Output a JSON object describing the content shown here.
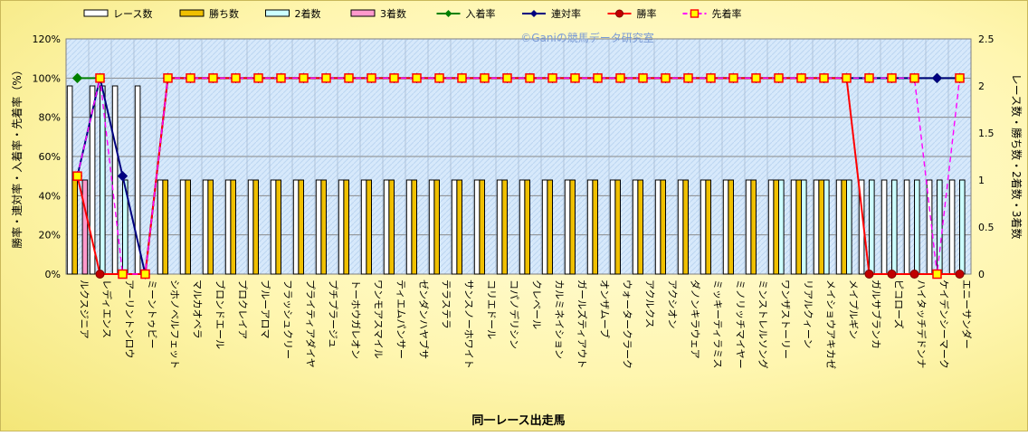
{
  "chart_data": {
    "type": "bar",
    "watermark": "©Ganiの競馬データ研究室",
    "xlabel": "同一レース出走馬",
    "ylabel_left": "勝率・連対率・入着率・先着率（%）",
    "ylabel_right": "レース数・勝ち数・2着数・3着数",
    "y_left_ticks": [
      "0%",
      "20%",
      "40%",
      "60%",
      "80%",
      "100%",
      "120%"
    ],
    "y_right_ticks": [
      "0",
      "0.5",
      "1",
      "1.5",
      "2",
      "2.5"
    ],
    "ylim_left": [
      0,
      120
    ],
    "ylim_right": [
      0,
      2.5
    ],
    "grid": true,
    "legend_position": "top",
    "categories": [
      "ルクスジニア",
      "レディエンス",
      "アーリントンロウ",
      "ミーントゥビー",
      "シホノベルフェット",
      "マルカオベラ",
      "ブロンドエール",
      "プロクレイア",
      "ブルーアロマ",
      "フラッシュクリー",
      "プライティアダイヤ",
      "プチプラージュ",
      "トーホウガレオン",
      "ワンモアスマイル",
      "ティエムパンサー",
      "ゼンダンハヤブサ",
      "テラステラ",
      "サンスノーホワイト",
      "コリエドール",
      "コパノデリシン",
      "クレベール",
      "カルミネイション",
      "ガールズティアウト",
      "オンザムーブ",
      "ウォータークラーク",
      "アクルクス",
      "アクシオン",
      "ダノンキラウェア",
      "ミッキーティラミス",
      "ミノリッチマイヤー",
      "ミンストレルソング",
      "ワンザストーリー",
      "リアルクィーン",
      "メイショウアキカゼ",
      "メイプルギン",
      "ガルサブランカ",
      "ピコローズ",
      "ハイタッチデドンナ",
      "ケイデンシーマーク",
      "エニーサンダー"
    ],
    "series": [
      {
        "name": "レース数",
        "axis": "right",
        "color": "#ffffff",
        "values": [
          2,
          2,
          2,
          2,
          1,
          1,
          1,
          1,
          1,
          1,
          1,
          1,
          1,
          1,
          1,
          1,
          1,
          1,
          1,
          1,
          1,
          1,
          1,
          1,
          1,
          1,
          1,
          1,
          1,
          1,
          1,
          1,
          1,
          1,
          1,
          1,
          1,
          1,
          1,
          1
        ]
      },
      {
        "name": "勝ち数",
        "axis": "right",
        "color": "#f0c000",
        "values": [
          1,
          0,
          0,
          0,
          1,
          1,
          1,
          1,
          1,
          1,
          1,
          1,
          1,
          1,
          1,
          1,
          1,
          1,
          1,
          1,
          1,
          1,
          1,
          1,
          1,
          1,
          1,
          1,
          1,
          1,
          1,
          1,
          1,
          1,
          1,
          0,
          0,
          0,
          0,
          0
        ]
      },
      {
        "name": "2着数",
        "axis": "right",
        "color": "#ccffff",
        "values": [
          0,
          2,
          1,
          0,
          0,
          0,
          0,
          0,
          0,
          0,
          0,
          0,
          0,
          0,
          0,
          0,
          0,
          0,
          0,
          0,
          0,
          0,
          0,
          0,
          0,
          0,
          0,
          0,
          0,
          0,
          0,
          1,
          1,
          1,
          1,
          1,
          1,
          1,
          1,
          1
        ]
      },
      {
        "name": "3着数",
        "axis": "right",
        "color": "#ff99cc",
        "values": [
          1,
          0,
          0,
          0,
          0,
          0,
          0,
          0,
          0,
          0,
          0,
          0,
          0,
          0,
          0,
          0,
          0,
          0,
          0,
          0,
          0,
          0,
          0,
          0,
          0,
          0,
          0,
          0,
          0,
          0,
          0,
          0,
          0,
          0,
          0,
          0,
          0,
          0,
          0,
          0
        ]
      },
      {
        "name": "入着率",
        "axis": "left",
        "color": "#008000",
        "marker": "diamond",
        "values": [
          100,
          100,
          null,
          null,
          100,
          100,
          100,
          100,
          100,
          100,
          100,
          100,
          100,
          100,
          100,
          100,
          100,
          100,
          100,
          100,
          100,
          100,
          100,
          100,
          100,
          100,
          100,
          100,
          100,
          100,
          100,
          100,
          100,
          100,
          100,
          100,
          100,
          100,
          100,
          100
        ]
      },
      {
        "name": "連対率",
        "axis": "left",
        "color": "#000080",
        "marker": "diamond",
        "values": [
          50,
          100,
          50,
          0,
          100,
          100,
          100,
          100,
          100,
          100,
          100,
          100,
          100,
          100,
          100,
          100,
          100,
          100,
          100,
          100,
          100,
          100,
          100,
          100,
          100,
          100,
          100,
          100,
          100,
          100,
          100,
          100,
          100,
          100,
          100,
          100,
          100,
          100,
          100,
          100
        ]
      },
      {
        "name": "勝率",
        "axis": "left",
        "color": "#ff0000",
        "marker": "circle",
        "values": [
          50,
          0,
          0,
          0,
          100,
          100,
          100,
          100,
          100,
          100,
          100,
          100,
          100,
          100,
          100,
          100,
          100,
          100,
          100,
          100,
          100,
          100,
          100,
          100,
          100,
          100,
          100,
          100,
          100,
          100,
          100,
          100,
          100,
          100,
          100,
          0,
          0,
          0,
          0,
          0
        ]
      },
      {
        "name": "先着率",
        "axis": "left",
        "color": "#ff00ff",
        "marker": "square",
        "dashed": true,
        "values": [
          50,
          100,
          0,
          0,
          100,
          100,
          100,
          100,
          100,
          100,
          100,
          100,
          100,
          100,
          100,
          100,
          100,
          100,
          100,
          100,
          100,
          100,
          100,
          100,
          100,
          100,
          100,
          100,
          100,
          100,
          100,
          100,
          100,
          100,
          100,
          100,
          100,
          100,
          0,
          100
        ]
      }
    ]
  }
}
